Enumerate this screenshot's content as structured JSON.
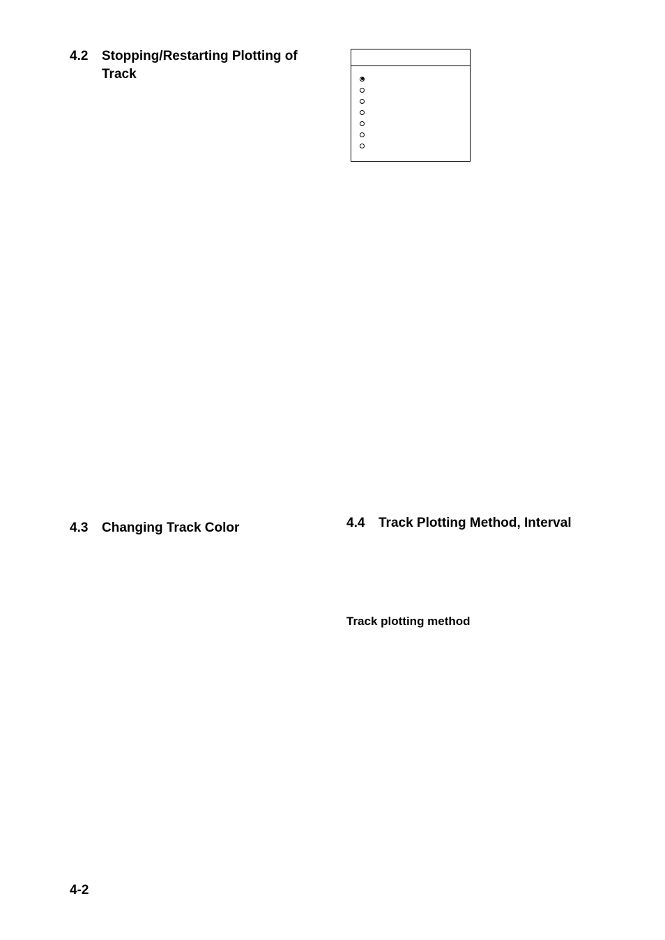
{
  "page_number": "4-2",
  "sections": {
    "s42": {
      "num": "4.2",
      "title": "Stopping/Restarting Plotting of Track"
    },
    "s43": {
      "num": "4.3",
      "title": "Changing Track Color"
    },
    "s44": {
      "num": "4.4",
      "title": "Track Plotting Method, Interval"
    }
  },
  "sub_heading_tpm": "Track plotting method",
  "menu": {
    "items": [
      {
        "label": "",
        "selected": true
      },
      {
        "label": "",
        "selected": false
      },
      {
        "label": "",
        "selected": false
      },
      {
        "label": "",
        "selected": false
      },
      {
        "label": "",
        "selected": false
      },
      {
        "label": "",
        "selected": false
      },
      {
        "label": "",
        "selected": false
      }
    ]
  },
  "colors": {
    "text": "#000000",
    "background": "#ffffff",
    "border": "#000000"
  },
  "typography": {
    "heading_fontsize": 19,
    "subheading_fontsize": 17,
    "menu_fontsize": 11,
    "font_family": "Arial"
  }
}
